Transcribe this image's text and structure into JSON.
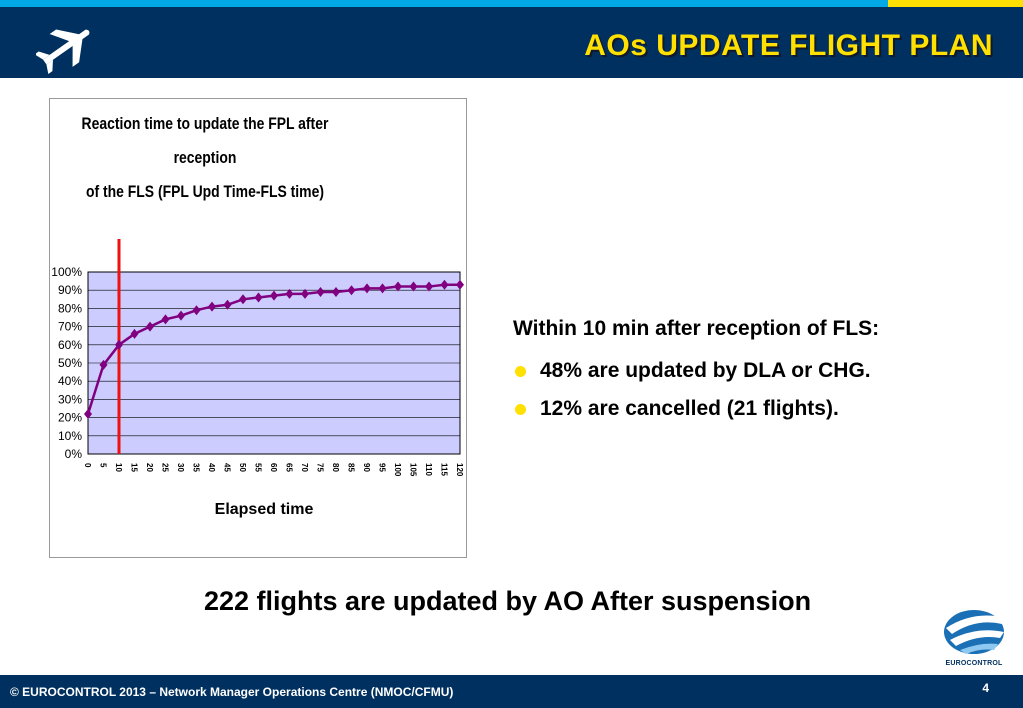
{
  "header": {
    "title": "AOs UPDATE FLIGHT PLAN",
    "icon": "airplane-icon"
  },
  "colors": {
    "header_bg": "#00305f",
    "title_yellow": "#ffe000",
    "top_strip_cyan": "#00a9e6",
    "plot_bg": "#ccccff",
    "series_purple": "#800080",
    "marker_red": "#ee1111"
  },
  "chart_data": {
    "type": "line",
    "title_lines": [
      "Reaction time to update the FPL after reception",
      "of the FLS  (FPL Upd Time-FLS time)"
    ],
    "xlabel": "Elapsed time",
    "ylabel": "",
    "x": [
      0,
      5,
      10,
      15,
      20,
      25,
      30,
      35,
      40,
      45,
      50,
      55,
      60,
      65,
      70,
      75,
      80,
      85,
      90,
      95,
      100,
      105,
      110,
      115,
      120
    ],
    "x_tick_labels": [
      "0",
      "5",
      "10",
      "15",
      "20",
      "25",
      "30",
      "35",
      "40",
      "45",
      "50",
      "55",
      "60",
      "65",
      "70",
      "75",
      "80",
      "85",
      "90",
      "95",
      "100",
      "105",
      "110",
      "115",
      "120"
    ],
    "series": [
      {
        "values": [
          22,
          49,
          60,
          66,
          70,
          74,
          76,
          79,
          81,
          82,
          85,
          86,
          87,
          88,
          88,
          89,
          89,
          90,
          91,
          91,
          92,
          92,
          92,
          93,
          93
        ]
      }
    ],
    "ylim": [
      0,
      100
    ],
    "y_tick_labels": [
      "0%",
      "10%",
      "20%",
      "30%",
      "40%",
      "50%",
      "60%",
      "70%",
      "80%",
      "90%",
      "100%"
    ],
    "grid": true,
    "reference_line_x": 10,
    "legend": "none"
  },
  "info": {
    "heading": "Within 10 min after reception of FLS:",
    "bullets": [
      "48% are updated by DLA or CHG.",
      "12% are cancelled (21 flights)."
    ]
  },
  "summary": "222 flights are updated by AO After suspension",
  "logo": {
    "icon": "eurocontrol-logo-icon",
    "text": "EUROCONTROL"
  },
  "footer": {
    "copyright": "© EUROCONTROL 2013 – Network Manager Operations Centre (NMOC/CFMU)",
    "page_number": "4"
  }
}
